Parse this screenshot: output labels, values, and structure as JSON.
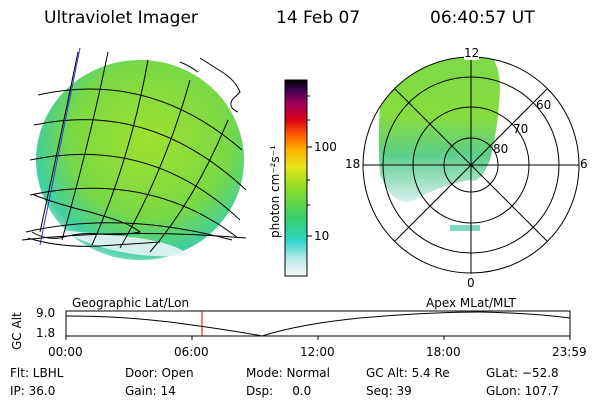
{
  "header": {
    "title": "Ultraviolet Imager",
    "date": "14 Feb 07",
    "time": "06:40:57 UT"
  },
  "colorbar": {
    "unit_label": "photon cm⁻²s⁻¹",
    "ticks": [
      "100",
      "10"
    ]
  },
  "polar_plot": {
    "clock_labels": {
      "top": "12",
      "bottom": "0",
      "left": "18",
      "right": "6"
    },
    "lat_labels": [
      "60",
      "70",
      "80"
    ]
  },
  "timeline": {
    "left_title": "Geographic Lat/Lon",
    "right_title": "Apex  MLat/MLT",
    "y_axis_label": "GC Alt",
    "y_ticks": [
      "9.0",
      "1.8"
    ],
    "x_ticks": [
      "00:00",
      "06:00",
      "12:00",
      "18:00",
      "23:59"
    ],
    "current_time_marker": "06:40"
  },
  "footer": {
    "flt": "Flt: LBHL",
    "door": "Door: Open",
    "mode": "Mode: Normal",
    "gc_alt": "GC Alt: 5.4 Re",
    "glat": "GLat: −52.8",
    "ip": "IP: 36.0",
    "gain": "Gain: 14",
    "dsp": "Dsp:     0.0",
    "seq": "Seq: 39",
    "glon": "GLon: 107.7"
  },
  "colors": {
    "aurora_high": "#ffd200",
    "aurora_mid": "#9be12a",
    "aurora_low": "#37cc99",
    "background_low": "#f0f3f8",
    "marker": "#d40000"
  }
}
